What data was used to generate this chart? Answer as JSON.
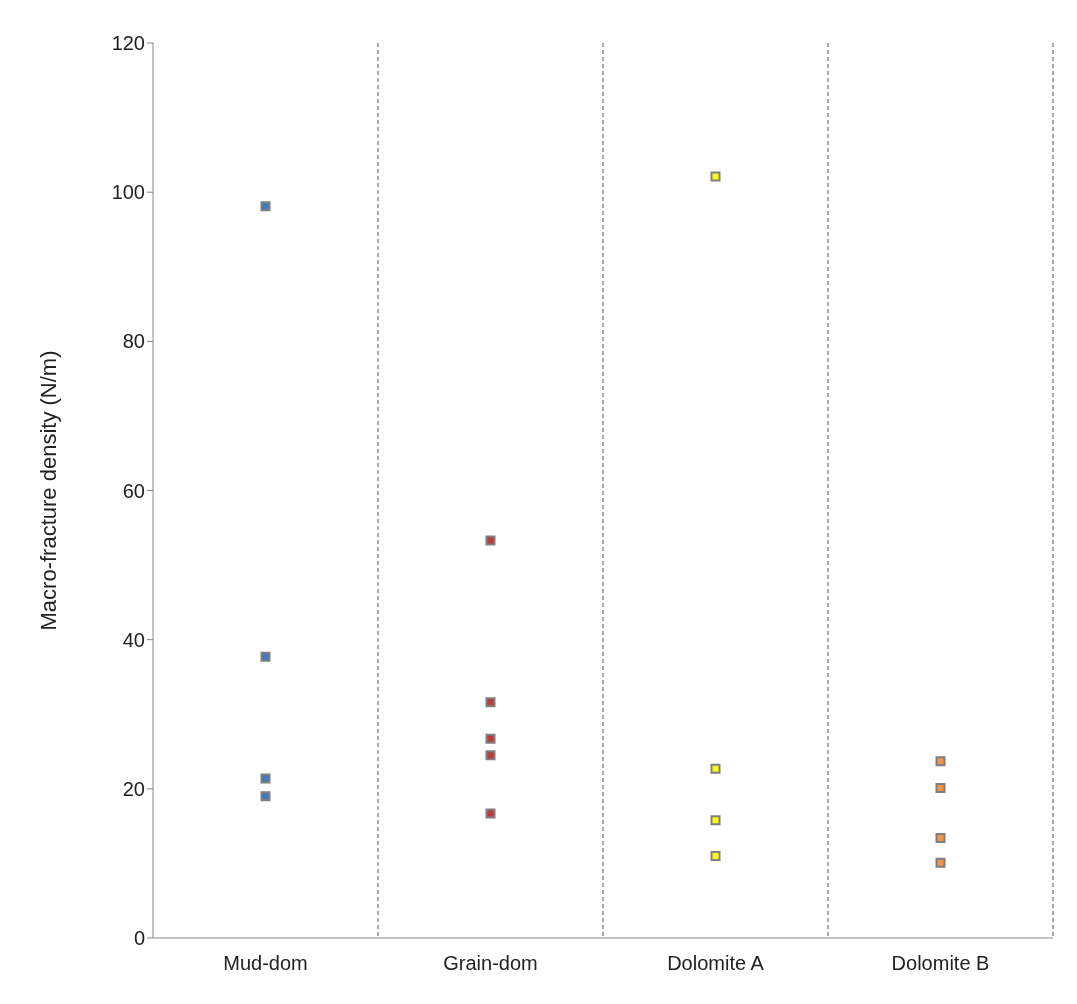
{
  "chart_data": {
    "type": "scatter",
    "ylabel": "Macro-fracture density (N/m)",
    "categories": [
      "Mud-dom",
      "Grain-dom",
      "Dolomite A",
      "Dolomite B"
    ],
    "ylim": [
      0,
      120
    ],
    "yticks": [
      0,
      20,
      40,
      60,
      80,
      100,
      120
    ],
    "grid": "x",
    "legend": false,
    "marker": "square",
    "series": [
      {
        "color": "#3f79c0",
        "x": [
          "Mud-dom",
          "Mud-dom",
          "Mud-dom",
          "Mud-dom"
        ],
        "values": [
          98.1,
          37.7,
          21.4,
          19.0
        ]
      },
      {
        "color": "#c0393b",
        "x": [
          "Grain-dom",
          "Grain-dom",
          "Grain-dom",
          "Grain-dom",
          "Grain-dom"
        ],
        "values": [
          53.3,
          31.6,
          26.7,
          24.5,
          16.7
        ]
      },
      {
        "color": "#ffff00",
        "x": [
          "Dolomite A",
          "Dolomite A",
          "Dolomite A",
          "Dolomite A"
        ],
        "values": [
          102.1,
          22.7,
          15.8,
          11.0
        ]
      },
      {
        "color": "#f79646",
        "x": [
          "Dolomite B",
          "Dolomite B",
          "Dolomite B",
          "Dolomite B"
        ],
        "values": [
          23.7,
          20.1,
          13.4,
          10.1
        ]
      }
    ]
  }
}
